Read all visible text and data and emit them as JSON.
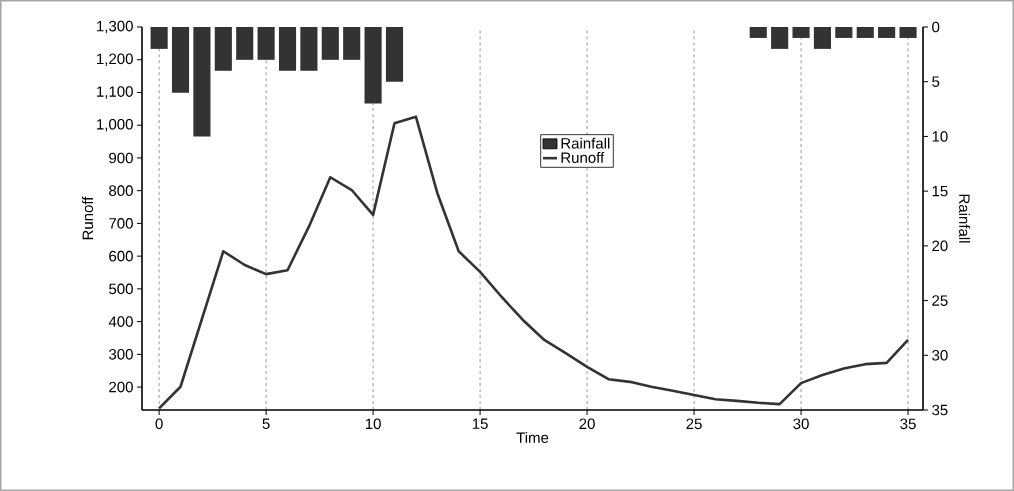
{
  "chart_data": {
    "type": "line",
    "xlabel": "Time",
    "ylabel": "Runoff",
    "y2label": "Rainfall",
    "x": [
      0,
      1,
      2,
      3,
      4,
      5,
      6,
      7,
      8,
      9,
      10,
      11,
      12,
      13,
      14,
      15,
      16,
      17,
      18,
      19,
      20,
      21,
      22,
      23,
      24,
      25,
      26,
      27,
      28,
      29,
      30,
      31,
      32,
      33,
      34,
      35
    ],
    "series": [
      {
        "name": "Rainfall",
        "type": "bar",
        "axis": "y2",
        "color": "#333333",
        "values": [
          2,
          6,
          10,
          4,
          3,
          3,
          4,
          4,
          3,
          3,
          7,
          5,
          0,
          0,
          0,
          0,
          0,
          0,
          0,
          0,
          0,
          0,
          0,
          0,
          0,
          0,
          0,
          0,
          1,
          2,
          1,
          2,
          1,
          1,
          1,
          1
        ]
      },
      {
        "name": "Runoff",
        "color": "#333333",
        "values": [
          135,
          201,
          408,
          615,
          573,
          545,
          557,
          690,
          841,
          802,
          726,
          1006,
          1026,
          793,
          615,
          552,
          476,
          405,
          344,
          304,
          262,
          224,
          216,
          201,
          189,
          176,
          163,
          158,
          152,
          148,
          212,
          237,
          257,
          270,
          274,
          344
        ]
      }
    ],
    "xlim": [
      -0.8,
      35.7
    ],
    "xticks": [
      0,
      5,
      10,
      15,
      20,
      25,
      30,
      35
    ],
    "ylim": [
      130,
      1300
    ],
    "yticks": [
      200,
      300,
      400,
      500,
      600,
      700,
      800,
      900,
      {
        "value": 1000,
        "label": "1,000"
      },
      {
        "value": 1100,
        "label": "1,100"
      },
      {
        "value": 1200,
        "label": "1,200"
      },
      {
        "value": 1300,
        "label": "1,300"
      }
    ],
    "y2lim": [
      35,
      0
    ],
    "y2ticks": [
      0,
      5,
      10,
      15,
      20,
      25,
      30,
      35
    ],
    "grid": "x",
    "legend": "top",
    "marker": "none",
    "line_style": "solid"
  }
}
